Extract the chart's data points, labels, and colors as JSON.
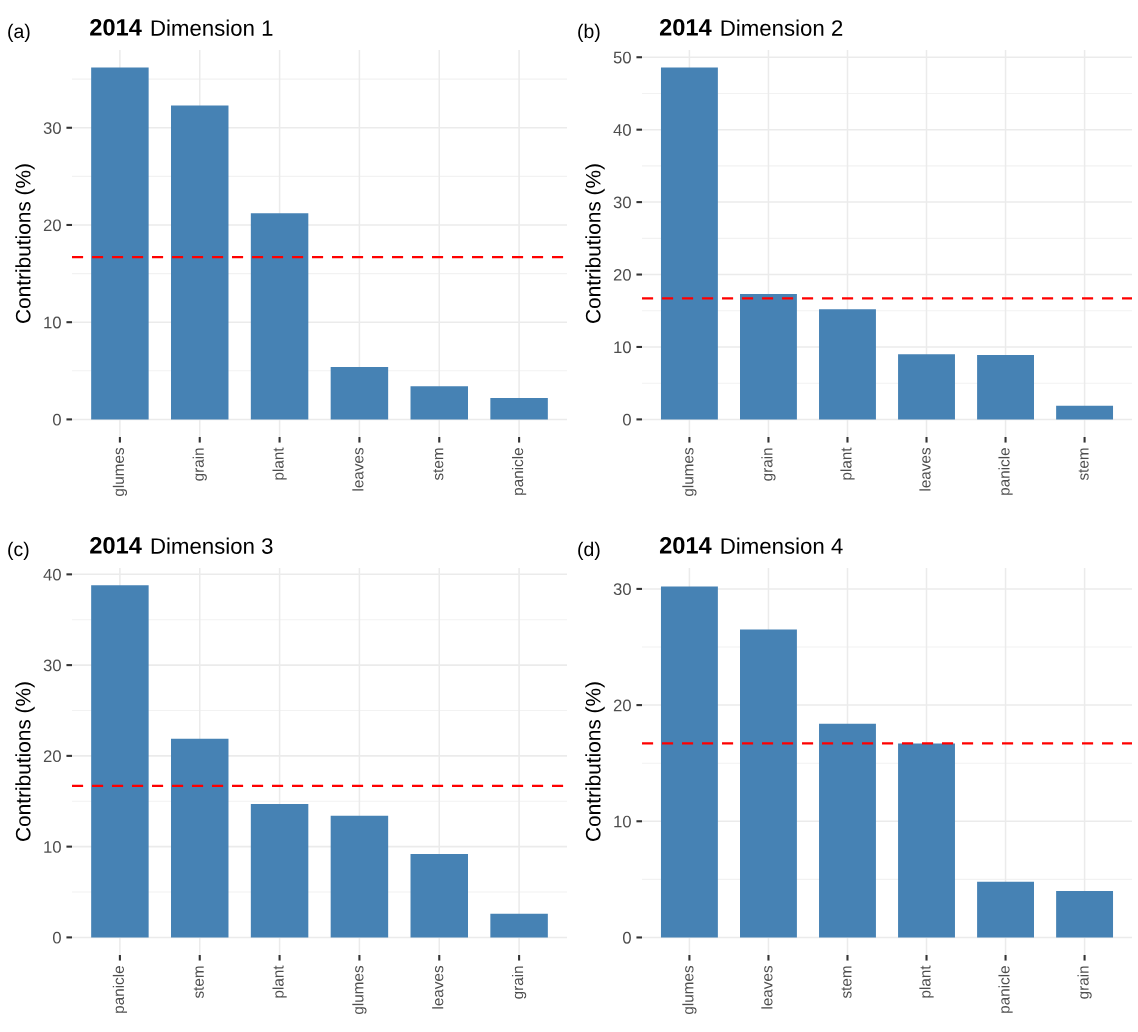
{
  "chart_data": [
    {
      "type": "bar",
      "title": "2014",
      "subtitle": "Dimension 1",
      "annotations": [
        "(a)"
      ],
      "ylabel": "Contributions (%)",
      "categories": [
        "glumes",
        "grain",
        "plant",
        "leaves",
        "stem",
        "panicle"
      ],
      "values": [
        36.2,
        32.3,
        21.2,
        5.4,
        3.4,
        2.2
      ],
      "color": "#4682b4",
      "ylim": [
        -1.81,
        38.0
      ],
      "yticks": [
        0,
        10,
        20,
        30
      ],
      "grid": true,
      "ref_lines": [
        {
          "axis": "y",
          "value": 16.7,
          "color": "#ff0000",
          "line_style": "dashed"
        }
      ]
    },
    {
      "type": "bar",
      "title": "2014",
      "subtitle": "Dimension 2",
      "annotations": [
        "(b)"
      ],
      "ylabel": "Contributions (%)",
      "categories": [
        "glumes",
        "grain",
        "plant",
        "leaves",
        "panicle",
        "stem"
      ],
      "values": [
        48.6,
        17.3,
        15.2,
        9.0,
        8.9,
        1.9
      ],
      "color": "#4682b4",
      "ylim": [
        -2.43,
        51.0
      ],
      "yticks": [
        0,
        10,
        20,
        30,
        40,
        50
      ],
      "grid": true,
      "ref_lines": [
        {
          "axis": "y",
          "value": 16.7,
          "color": "#ff0000",
          "line_style": "dashed"
        }
      ]
    },
    {
      "type": "bar",
      "title": "2014",
      "subtitle": "Dimension 3",
      "annotations": [
        "(c)"
      ],
      "ylabel": "Contributions (%)",
      "categories": [
        "panicle",
        "stem",
        "plant",
        "glumes",
        "leaves",
        "grain"
      ],
      "values": [
        38.8,
        21.9,
        14.7,
        13.4,
        9.2,
        2.6
      ],
      "color": "#4682b4",
      "ylim": [
        -1.94,
        40.7
      ],
      "yticks": [
        0,
        10,
        20,
        30,
        40
      ],
      "grid": true,
      "ref_lines": [
        {
          "axis": "y",
          "value": 16.7,
          "color": "#ff0000",
          "line_style": "dashed"
        }
      ]
    },
    {
      "type": "bar",
      "title": "2014",
      "subtitle": "Dimension 4",
      "annotations": [
        "(d)"
      ],
      "ylabel": "Contributions (%)",
      "categories": [
        "glumes",
        "leaves",
        "stem",
        "plant",
        "panicle",
        "grain"
      ],
      "values": [
        30.2,
        26.5,
        18.4,
        16.7,
        4.8,
        4.0
      ],
      "color": "#4682b4",
      "ylim": [
        -1.51,
        31.8
      ],
      "yticks": [
        0,
        10,
        20,
        30
      ],
      "grid": true,
      "ref_lines": [
        {
          "axis": "y",
          "value": 16.7,
          "color": "#ff0000",
          "line_style": "dashed"
        }
      ]
    }
  ]
}
